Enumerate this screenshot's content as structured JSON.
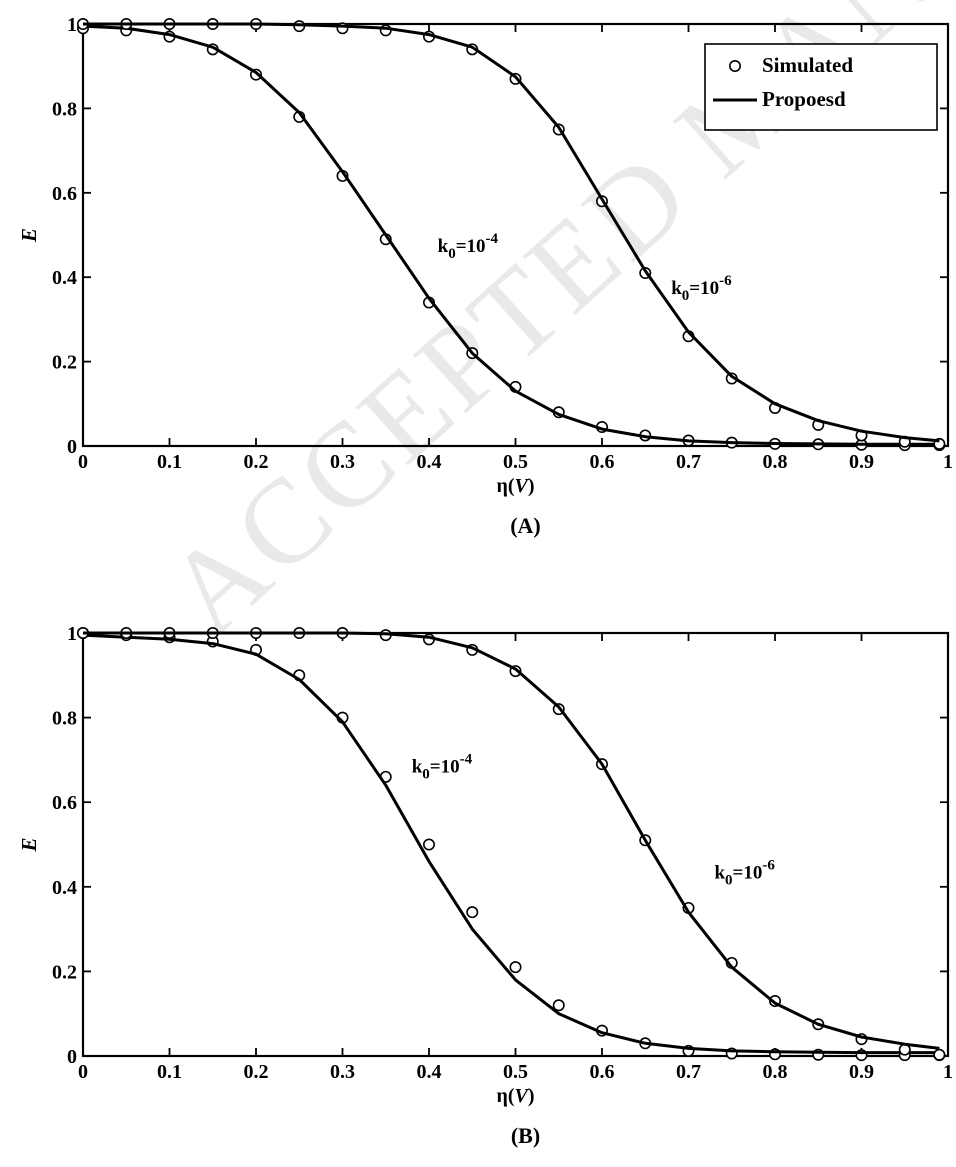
{
  "watermark": "ACCEPTED MANUSCRIPT",
  "chart_data": [
    {
      "type": "scatter",
      "panel_label": "(A)",
      "xlabel": "η(V)",
      "ylabel": "E",
      "xlim": [
        0,
        1
      ],
      "ylim": [
        0,
        1
      ],
      "xticks": [
        "0",
        "0.1",
        "0.2",
        "0.3",
        "0.4",
        "0.5",
        "0.6",
        "0.7",
        "0.8",
        "0.9",
        "1"
      ],
      "yticks": [
        "0",
        "0.2",
        "0.4",
        "0.6",
        "0.8",
        "1"
      ],
      "legend": {
        "position": "top-right",
        "entries": [
          "Simulated",
          "Propoesd"
        ]
      },
      "annotations": [
        {
          "text": "k0=10-4",
          "x": 0.41,
          "y": 0.46
        },
        {
          "text": "k0=10-6",
          "x": 0.68,
          "y": 0.36
        }
      ],
      "series": [
        {
          "name": "Simulated",
          "curve": "k0=10-4",
          "marker": "circle",
          "x": [
            0.0,
            0.05,
            0.1,
            0.15,
            0.2,
            0.25,
            0.3,
            0.35,
            0.4,
            0.45,
            0.5,
            0.55,
            0.6,
            0.65,
            0.7,
            0.75,
            0.8,
            0.85,
            0.9,
            0.95,
            0.99
          ],
          "y": [
            0.99,
            0.985,
            0.97,
            0.94,
            0.88,
            0.78,
            0.64,
            0.49,
            0.34,
            0.22,
            0.14,
            0.08,
            0.045,
            0.025,
            0.013,
            0.008,
            0.005,
            0.004,
            0.003,
            0.002,
            0.002
          ]
        },
        {
          "name": "Propoesd",
          "curve": "k0=10-4",
          "marker": "line",
          "x": [
            0.0,
            0.05,
            0.1,
            0.15,
            0.2,
            0.25,
            0.3,
            0.35,
            0.4,
            0.45,
            0.5,
            0.55,
            0.6,
            0.65,
            0.7,
            0.75,
            0.8,
            0.85,
            0.9,
            0.95,
            0.99
          ],
          "y": [
            0.995,
            0.99,
            0.975,
            0.945,
            0.885,
            0.79,
            0.65,
            0.5,
            0.35,
            0.22,
            0.13,
            0.075,
            0.04,
            0.022,
            0.012,
            0.008,
            0.006,
            0.005,
            0.004,
            0.004,
            0.004
          ]
        },
        {
          "name": "Simulated",
          "curve": "k0=10-6",
          "marker": "circle",
          "x": [
            0.0,
            0.05,
            0.1,
            0.15,
            0.2,
            0.25,
            0.3,
            0.35,
            0.4,
            0.45,
            0.5,
            0.55,
            0.6,
            0.65,
            0.7,
            0.75,
            0.8,
            0.85,
            0.9,
            0.95,
            0.99
          ],
          "y": [
            1.0,
            1.0,
            1.0,
            1.0,
            1.0,
            0.995,
            0.99,
            0.985,
            0.97,
            0.94,
            0.87,
            0.75,
            0.58,
            0.41,
            0.26,
            0.16,
            0.09,
            0.05,
            0.025,
            0.01,
            0.005
          ]
        },
        {
          "name": "Propoesd",
          "curve": "k0=10-6",
          "marker": "line",
          "x": [
            0.0,
            0.05,
            0.1,
            0.15,
            0.2,
            0.25,
            0.3,
            0.35,
            0.4,
            0.45,
            0.5,
            0.55,
            0.6,
            0.65,
            0.7,
            0.75,
            0.8,
            0.85,
            0.9,
            0.95,
            0.99
          ],
          "y": [
            1.0,
            1.0,
            1.0,
            1.0,
            1.0,
            0.998,
            0.995,
            0.99,
            0.975,
            0.945,
            0.875,
            0.755,
            0.585,
            0.415,
            0.27,
            0.165,
            0.1,
            0.06,
            0.035,
            0.02,
            0.012
          ]
        }
      ]
    },
    {
      "type": "scatter",
      "panel_label": "(B)",
      "xlabel": "η(V)",
      "ylabel": "E",
      "xlim": [
        0,
        1
      ],
      "ylim": [
        0,
        1
      ],
      "xticks": [
        "0",
        "0.1",
        "0.2",
        "0.3",
        "0.4",
        "0.5",
        "0.6",
        "0.7",
        "0.8",
        "0.9",
        "1"
      ],
      "yticks": [
        "0",
        "0.2",
        "0.4",
        "0.6",
        "0.8",
        "1"
      ],
      "annotations": [
        {
          "text": "k0=10-4",
          "x": 0.38,
          "y": 0.67
        },
        {
          "text": "k0=10-6",
          "x": 0.73,
          "y": 0.42
        }
      ],
      "series": [
        {
          "name": "Simulated",
          "curve": "k0=10-4",
          "marker": "circle",
          "x": [
            0.0,
            0.05,
            0.1,
            0.15,
            0.2,
            0.25,
            0.3,
            0.35,
            0.4,
            0.45,
            0.5,
            0.55,
            0.6,
            0.65,
            0.7,
            0.75,
            0.8,
            0.85,
            0.9,
            0.95,
            0.99
          ],
          "y": [
            1.0,
            0.995,
            0.99,
            0.98,
            0.96,
            0.9,
            0.8,
            0.66,
            0.5,
            0.34,
            0.21,
            0.12,
            0.06,
            0.03,
            0.012,
            0.006,
            0.004,
            0.003,
            0.002,
            0.002,
            0.002
          ]
        },
        {
          "name": "Propoesd",
          "curve": "k0=10-4",
          "marker": "line",
          "x": [
            0.0,
            0.05,
            0.1,
            0.15,
            0.2,
            0.25,
            0.3,
            0.35,
            0.4,
            0.45,
            0.5,
            0.55,
            0.6,
            0.65,
            0.7,
            0.75,
            0.8,
            0.85,
            0.9,
            0.95,
            0.99
          ],
          "y": [
            0.995,
            0.99,
            0.985,
            0.975,
            0.95,
            0.89,
            0.79,
            0.64,
            0.46,
            0.3,
            0.18,
            0.1,
            0.055,
            0.03,
            0.018,
            0.012,
            0.01,
            0.009,
            0.008,
            0.008,
            0.008
          ]
        },
        {
          "name": "Simulated",
          "curve": "k0=10-6",
          "marker": "circle",
          "x": [
            0.0,
            0.05,
            0.1,
            0.15,
            0.2,
            0.25,
            0.3,
            0.35,
            0.4,
            0.45,
            0.5,
            0.55,
            0.6,
            0.65,
            0.7,
            0.75,
            0.8,
            0.85,
            0.9,
            0.95,
            0.99
          ],
          "y": [
            1.0,
            1.0,
            1.0,
            1.0,
            1.0,
            1.0,
            1.0,
            0.995,
            0.985,
            0.96,
            0.91,
            0.82,
            0.69,
            0.51,
            0.35,
            0.22,
            0.13,
            0.075,
            0.04,
            0.015,
            0.003
          ]
        },
        {
          "name": "Propoesd",
          "curve": "k0=10-6",
          "marker": "line",
          "x": [
            0.0,
            0.05,
            0.1,
            0.15,
            0.2,
            0.25,
            0.3,
            0.35,
            0.4,
            0.45,
            0.5,
            0.55,
            0.6,
            0.65,
            0.7,
            0.75,
            0.8,
            0.85,
            0.9,
            0.95,
            0.99
          ],
          "y": [
            1.0,
            1.0,
            1.0,
            1.0,
            1.0,
            1.0,
            1.0,
            0.998,
            0.99,
            0.965,
            0.915,
            0.825,
            0.69,
            0.51,
            0.34,
            0.21,
            0.125,
            0.075,
            0.045,
            0.028,
            0.018
          ]
        }
      ]
    }
  ]
}
